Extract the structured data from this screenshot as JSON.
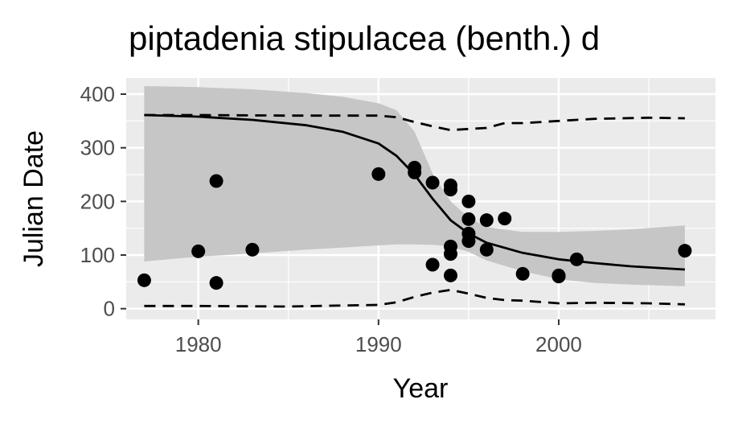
{
  "chart_data": {
    "type": "scatter",
    "title": "piptadenia stipulacea (benth.) d",
    "xlabel": "Year",
    "ylabel": "Julian Date",
    "xlim": [
      1976.0,
      2008.7
    ],
    "ylim": [
      -20,
      430
    ],
    "x_ticks": [
      1980,
      1990,
      2000
    ],
    "y_ticks": [
      0,
      100,
      200,
      300,
      400
    ],
    "x_tick_labels": [
      "1980",
      "1990",
      "2000"
    ],
    "y_tick_labels": [
      "0",
      "100",
      "200",
      "300",
      "400"
    ],
    "grid": true,
    "legend": "none",
    "colors": {
      "panel": "#ebebeb",
      "grid": "#ffffff",
      "ribbon": "#c6c6c6",
      "points": "#000000",
      "lines": "#000000"
    },
    "points": [
      {
        "x": 1977,
        "y": 53
      },
      {
        "x": 1980,
        "y": 107
      },
      {
        "x": 1981,
        "y": 238
      },
      {
        "x": 1981,
        "y": 48
      },
      {
        "x": 1983,
        "y": 110
      },
      {
        "x": 1990,
        "y": 251
      },
      {
        "x": 1992,
        "y": 263
      },
      {
        "x": 1992,
        "y": 254
      },
      {
        "x": 1993,
        "y": 235
      },
      {
        "x": 1993,
        "y": 82
      },
      {
        "x": 1994,
        "y": 230
      },
      {
        "x": 1994,
        "y": 222
      },
      {
        "x": 1994,
        "y": 116
      },
      {
        "x": 1994,
        "y": 102
      },
      {
        "x": 1994,
        "y": 62
      },
      {
        "x": 1995,
        "y": 200
      },
      {
        "x": 1995,
        "y": 167
      },
      {
        "x": 1995,
        "y": 140
      },
      {
        "x": 1995,
        "y": 126
      },
      {
        "x": 1996,
        "y": 165
      },
      {
        "x": 1996,
        "y": 110
      },
      {
        "x": 1997,
        "y": 168
      },
      {
        "x": 1998,
        "y": 65
      },
      {
        "x": 2000,
        "y": 62
      },
      {
        "x": 2000,
        "y": 60
      },
      {
        "x": 2001,
        "y": 92
      },
      {
        "x": 2007,
        "y": 108
      }
    ],
    "fit": {
      "x": [
        1977,
        1980,
        1983,
        1986,
        1988,
        1990,
        1991,
        1992,
        1993,
        1994,
        1995,
        1996,
        1998,
        2000,
        2002,
        2004,
        2007
      ],
      "y": [
        361,
        358,
        352,
        342,
        330,
        308,
        285,
        250,
        205,
        165,
        140,
        123,
        104,
        92,
        85,
        79,
        73
      ]
    },
    "ribbon": {
      "x": [
        1977,
        1980,
        1983,
        1986,
        1988,
        1990,
        1991,
        1992,
        1993,
        1994,
        1995,
        1996,
        1998,
        2000,
        2002,
        2004,
        2007
      ],
      "upper": [
        415,
        413,
        409,
        402,
        395,
        383,
        370,
        330,
        252,
        200,
        170,
        152,
        143,
        143,
        145,
        148,
        155
      ],
      "lower": [
        88,
        97,
        103,
        110,
        114,
        118,
        120,
        120,
        119,
        116,
        106,
        90,
        70,
        55,
        48,
        45,
        42
      ]
    },
    "dashed_upper": {
      "x": [
        1977,
        1980,
        1985,
        1988,
        1990,
        1991,
        1992,
        1993,
        1994,
        1995,
        1996,
        1997,
        1998,
        2000,
        2002,
        2005,
        2007
      ],
      "y": [
        361,
        361,
        360,
        360,
        360,
        357,
        348,
        340,
        333,
        335,
        337,
        346,
        346,
        350,
        354,
        356,
        355
      ]
    },
    "dashed_lower": {
      "x": [
        1977,
        1980,
        1985,
        1988,
        1990,
        1991,
        1992,
        1993,
        1994,
        1995,
        1996,
        1997,
        1998,
        2000,
        2002,
        2005,
        2007
      ],
      "y": [
        5,
        5,
        4,
        6,
        7,
        12,
        22,
        30,
        35,
        28,
        20,
        16,
        15,
        10,
        11,
        10,
        8
      ]
    }
  }
}
